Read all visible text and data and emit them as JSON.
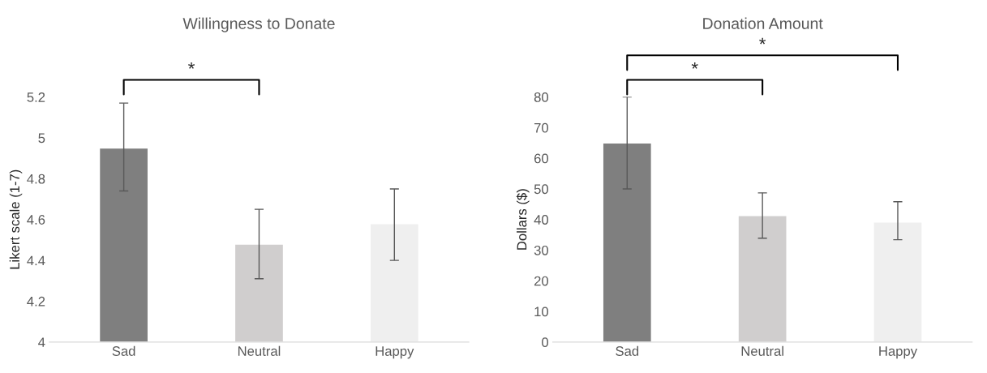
{
  "chart_data": [
    {
      "type": "bar",
      "title": "Willingness to Donate",
      "ylabel": "Likert scale (1-7)",
      "categories": [
        "Sad",
        "Neutral",
        "Happy"
      ],
      "values": [
        4.95,
        4.48,
        4.58
      ],
      "colors": [
        "#7f7f7f",
        "#d0cece",
        "#efefef"
      ],
      "errors": [
        [
          4.74,
          5.17
        ],
        [
          4.31,
          4.65
        ],
        [
          4.4,
          4.75
        ]
      ],
      "ylim": [
        4,
        5.2
      ],
      "yticks": [
        4,
        4.2,
        4.4,
        4.6,
        4.8,
        5,
        5.2
      ],
      "grid": false,
      "legend": false,
      "annotations": [
        "*"
      ]
    },
    {
      "type": "bar",
      "title": "Donation Amount",
      "ylabel": "Dollars ($)",
      "categories": [
        "Sad",
        "Neutral",
        "Happy"
      ],
      "values": [
        65,
        41.3,
        39.2
      ],
      "colors": [
        "#7f7f7f",
        "#d0cece",
        "#efefef"
      ],
      "errors": [
        [
          50,
          80
        ],
        [
          33.9,
          48.7
        ],
        [
          33.4,
          45.8
        ]
      ],
      "ylim": [
        0,
        80
      ],
      "yticks": [
        0,
        10,
        20,
        30,
        40,
        50,
        60,
        70,
        80
      ],
      "grid": false,
      "legend": false,
      "annotations": [
        "*",
        "*"
      ]
    }
  ]
}
